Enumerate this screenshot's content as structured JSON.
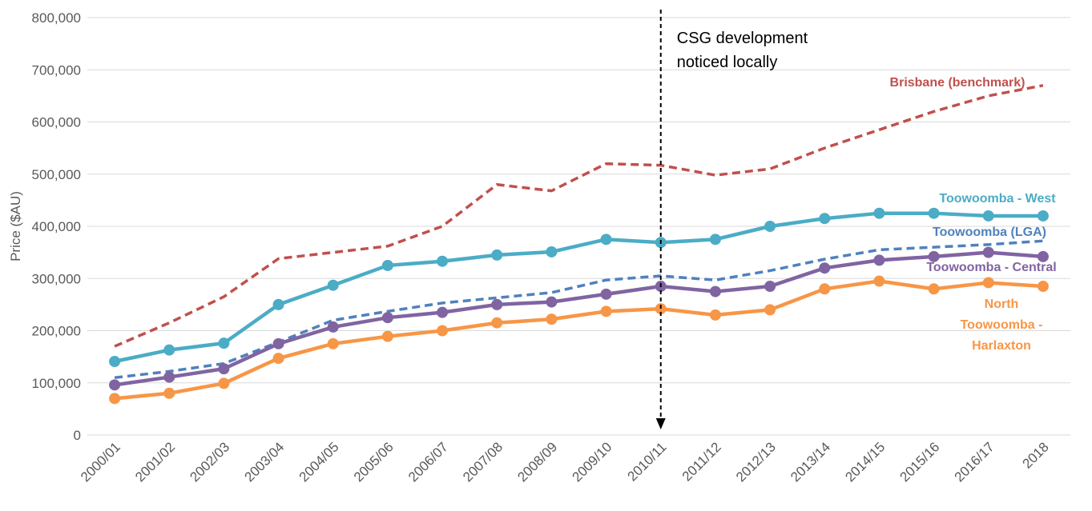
{
  "chart_data": {
    "type": "line",
    "y_label": "Price ($AU)",
    "categories": [
      "2000/01",
      "2001/02",
      "2002/03",
      "2003/04",
      "2004/05",
      "2005/06",
      "2006/07",
      "2007/08",
      "2008/09",
      "2009/10",
      "2010/11",
      "2011/12",
      "2012/13",
      "2013/14",
      "2014/15",
      "2015/16",
      "2016/17",
      "2018"
    ],
    "series": [
      {
        "name": "Brisbane (benchmark)",
        "color": "#c0504d",
        "style": "dashed",
        "markers": false,
        "values": [
          170000,
          215000,
          265000,
          338000,
          350000,
          362000,
          400000,
          480000,
          468000,
          520000,
          517000,
          498000,
          510000,
          550000,
          585000,
          620000,
          650000,
          670000
        ]
      },
      {
        "name": "Toowoomba - West",
        "color": "#4bacc6",
        "style": "solid",
        "markers": true,
        "values": [
          141000,
          163000,
          176000,
          250000,
          287000,
          325000,
          333000,
          345000,
          351000,
          375000,
          369000,
          375000,
          400000,
          415000,
          425000,
          425000,
          420000,
          420000
        ]
      },
      {
        "name": "Toowoomba (LGA)",
        "color": "#4f81bd",
        "style": "dashed",
        "markers": false,
        "values": [
          110000,
          122000,
          137000,
          178000,
          220000,
          237000,
          253000,
          263000,
          273000,
          297000,
          305000,
          297000,
          315000,
          337000,
          355000,
          360000,
          365000,
          372000
        ]
      },
      {
        "name": "Toowoomba - Central",
        "color": "#8064a2",
        "style": "solid",
        "markers": true,
        "values": [
          96000,
          111000,
          127000,
          175000,
          207000,
          225000,
          235000,
          250000,
          255000,
          270000,
          285000,
          275000,
          285000,
          320000,
          335000,
          342000,
          350000,
          342000
        ]
      },
      {
        "name": "North Toowoomba - Harlaxton",
        "color": "#f79646",
        "style": "solid",
        "markers": true,
        "values": [
          70000,
          80000,
          99000,
          147000,
          175000,
          189000,
          200000,
          215000,
          222000,
          237000,
          242000,
          230000,
          240000,
          280000,
          295000,
          280000,
          292000,
          285000
        ]
      }
    ],
    "annotation": {
      "text": "CSG development noticed locally",
      "at": "2010/11"
    },
    "ylim": [
      0,
      800000
    ],
    "yticks": [
      0,
      {
        "value": 100000,
        "label": "100,000"
      },
      {
        "value": 200000,
        "label": "200,000"
      },
      {
        "value": 300000,
        "label": "300,000"
      },
      {
        "value": 400000,
        "label": "400,000"
      },
      {
        "value": 500000,
        "label": "500,000"
      },
      {
        "value": 600000,
        "label": "600,000"
      },
      {
        "value": 700000,
        "label": "700,000"
      },
      {
        "value": 800000,
        "label": "800,000"
      }
    ],
    "grid": true
  }
}
